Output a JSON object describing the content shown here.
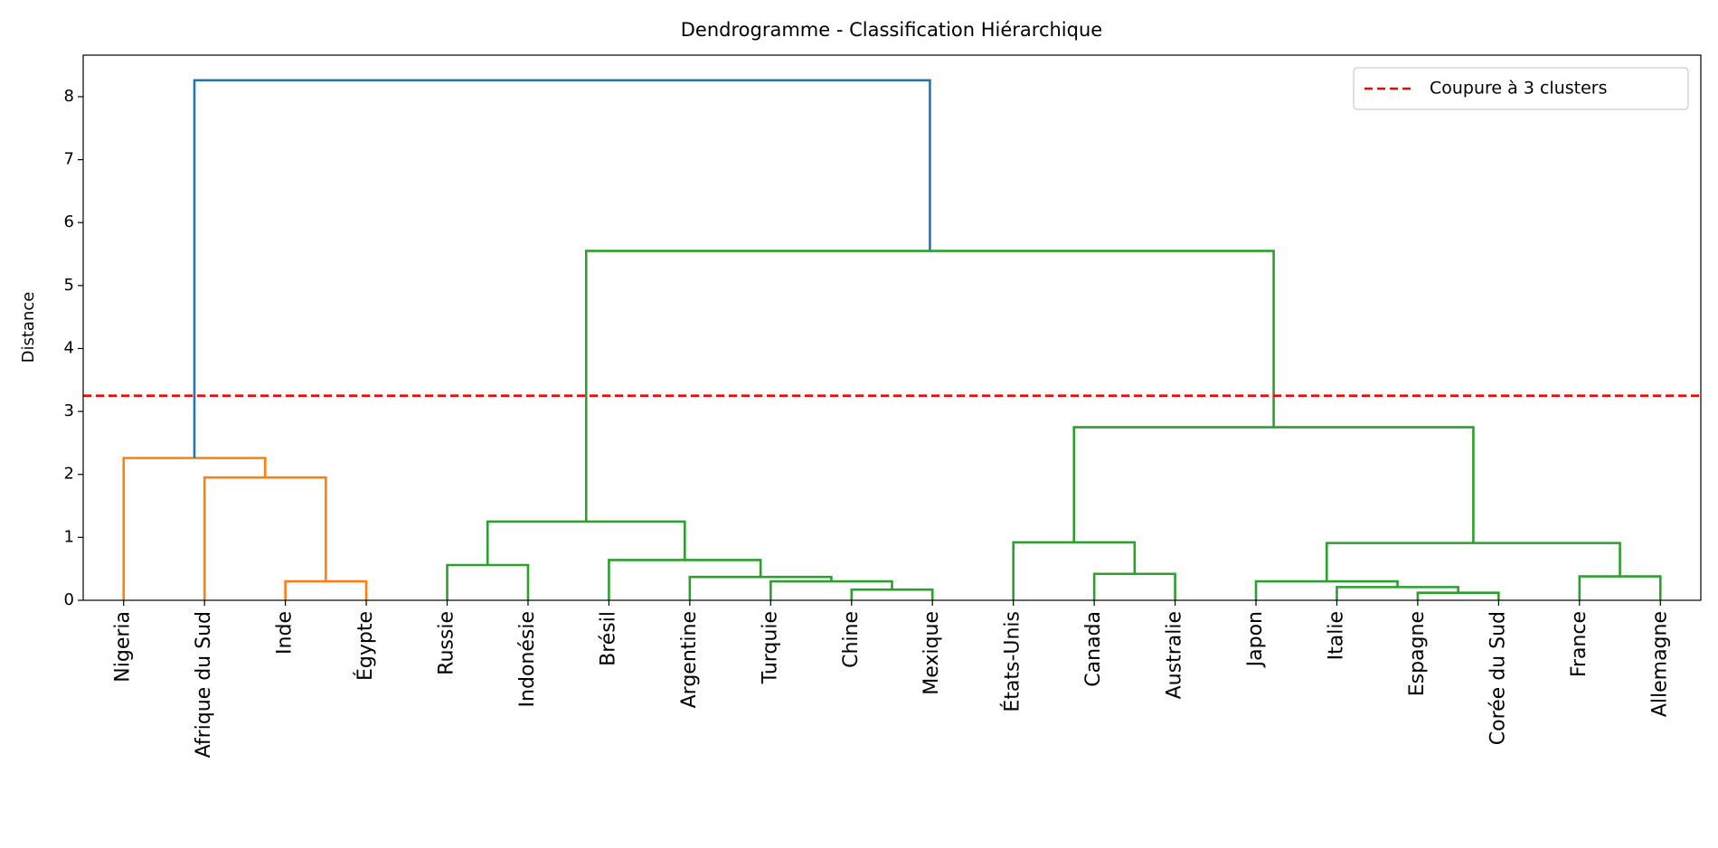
{
  "chart_data": {
    "type": "dendrogram",
    "title": "Dendrogramme - Classification Hiérarchique",
    "ylabel": "Distance",
    "ylim": [
      0,
      8.66
    ],
    "yticks": [
      0,
      1,
      2,
      3,
      4,
      5,
      6,
      7,
      8
    ],
    "cut": {
      "value": 3.25,
      "label": "Coupure à 3 clusters",
      "color": "#ff0000"
    },
    "legend": "upper right",
    "tree": {
      "height": 8.26,
      "color": "#1f77b4",
      "children": [
        {
          "height": 2.26,
          "color": "#ff7f0e",
          "children": [
            {
              "label": "Nigeria"
            },
            {
              "height": 1.95,
              "color": "#ff7f0e",
              "children": [
                {
                  "label": "Afrique du Sud"
                },
                {
                  "height": 0.3,
                  "color": "#ff7f0e",
                  "children": [
                    {
                      "label": "Inde"
                    },
                    {
                      "label": "Égypte"
                    }
                  ]
                }
              ]
            }
          ]
        },
        {
          "height": 5.55,
          "color": "#2ca02c",
          "children": [
            {
              "height": 1.25,
              "color": "#2ca02c",
              "children": [
                {
                  "height": 0.56,
                  "color": "#2ca02c",
                  "children": [
                    {
                      "label": "Russie"
                    },
                    {
                      "label": "Indonésie"
                    }
                  ]
                },
                {
                  "height": 0.64,
                  "color": "#2ca02c",
                  "children": [
                    {
                      "label": "Brésil"
                    },
                    {
                      "height": 0.37,
                      "color": "#2ca02c",
                      "children": [
                        {
                          "label": "Argentine"
                        },
                        {
                          "height": 0.3,
                          "color": "#2ca02c",
                          "children": [
                            {
                              "label": "Turquie"
                            },
                            {
                              "height": 0.17,
                              "color": "#2ca02c",
                              "children": [
                                {
                                  "label": "Chine"
                                },
                                {
                                  "label": "Mexique"
                                }
                              ]
                            }
                          ]
                        }
                      ]
                    }
                  ]
                }
              ]
            },
            {
              "height": 2.75,
              "color": "#2ca02c",
              "children": [
                {
                  "height": 0.92,
                  "color": "#2ca02c",
                  "children": [
                    {
                      "label": "États-Unis"
                    },
                    {
                      "height": 0.42,
                      "color": "#2ca02c",
                      "children": [
                        {
                          "label": "Canada"
                        },
                        {
                          "label": "Australie"
                        }
                      ]
                    }
                  ]
                },
                {
                  "height": 0.91,
                  "color": "#2ca02c",
                  "children": [
                    {
                      "height": 0.3,
                      "color": "#2ca02c",
                      "children": [
                        {
                          "label": "Japon"
                        },
                        {
                          "height": 0.21,
                          "color": "#2ca02c",
                          "children": [
                            {
                              "label": "Italie"
                            },
                            {
                              "height": 0.12,
                              "color": "#2ca02c",
                              "children": [
                                {
                                  "label": "Espagne"
                                },
                                {
                                  "label": "Corée du Sud"
                                }
                              ]
                            }
                          ]
                        }
                      ]
                    },
                    {
                      "height": 0.38,
                      "color": "#2ca02c",
                      "children": [
                        {
                          "label": "France"
                        },
                        {
                          "label": "Allemagne"
                        }
                      ]
                    }
                  ]
                }
              ]
            }
          ]
        }
      ]
    }
  }
}
